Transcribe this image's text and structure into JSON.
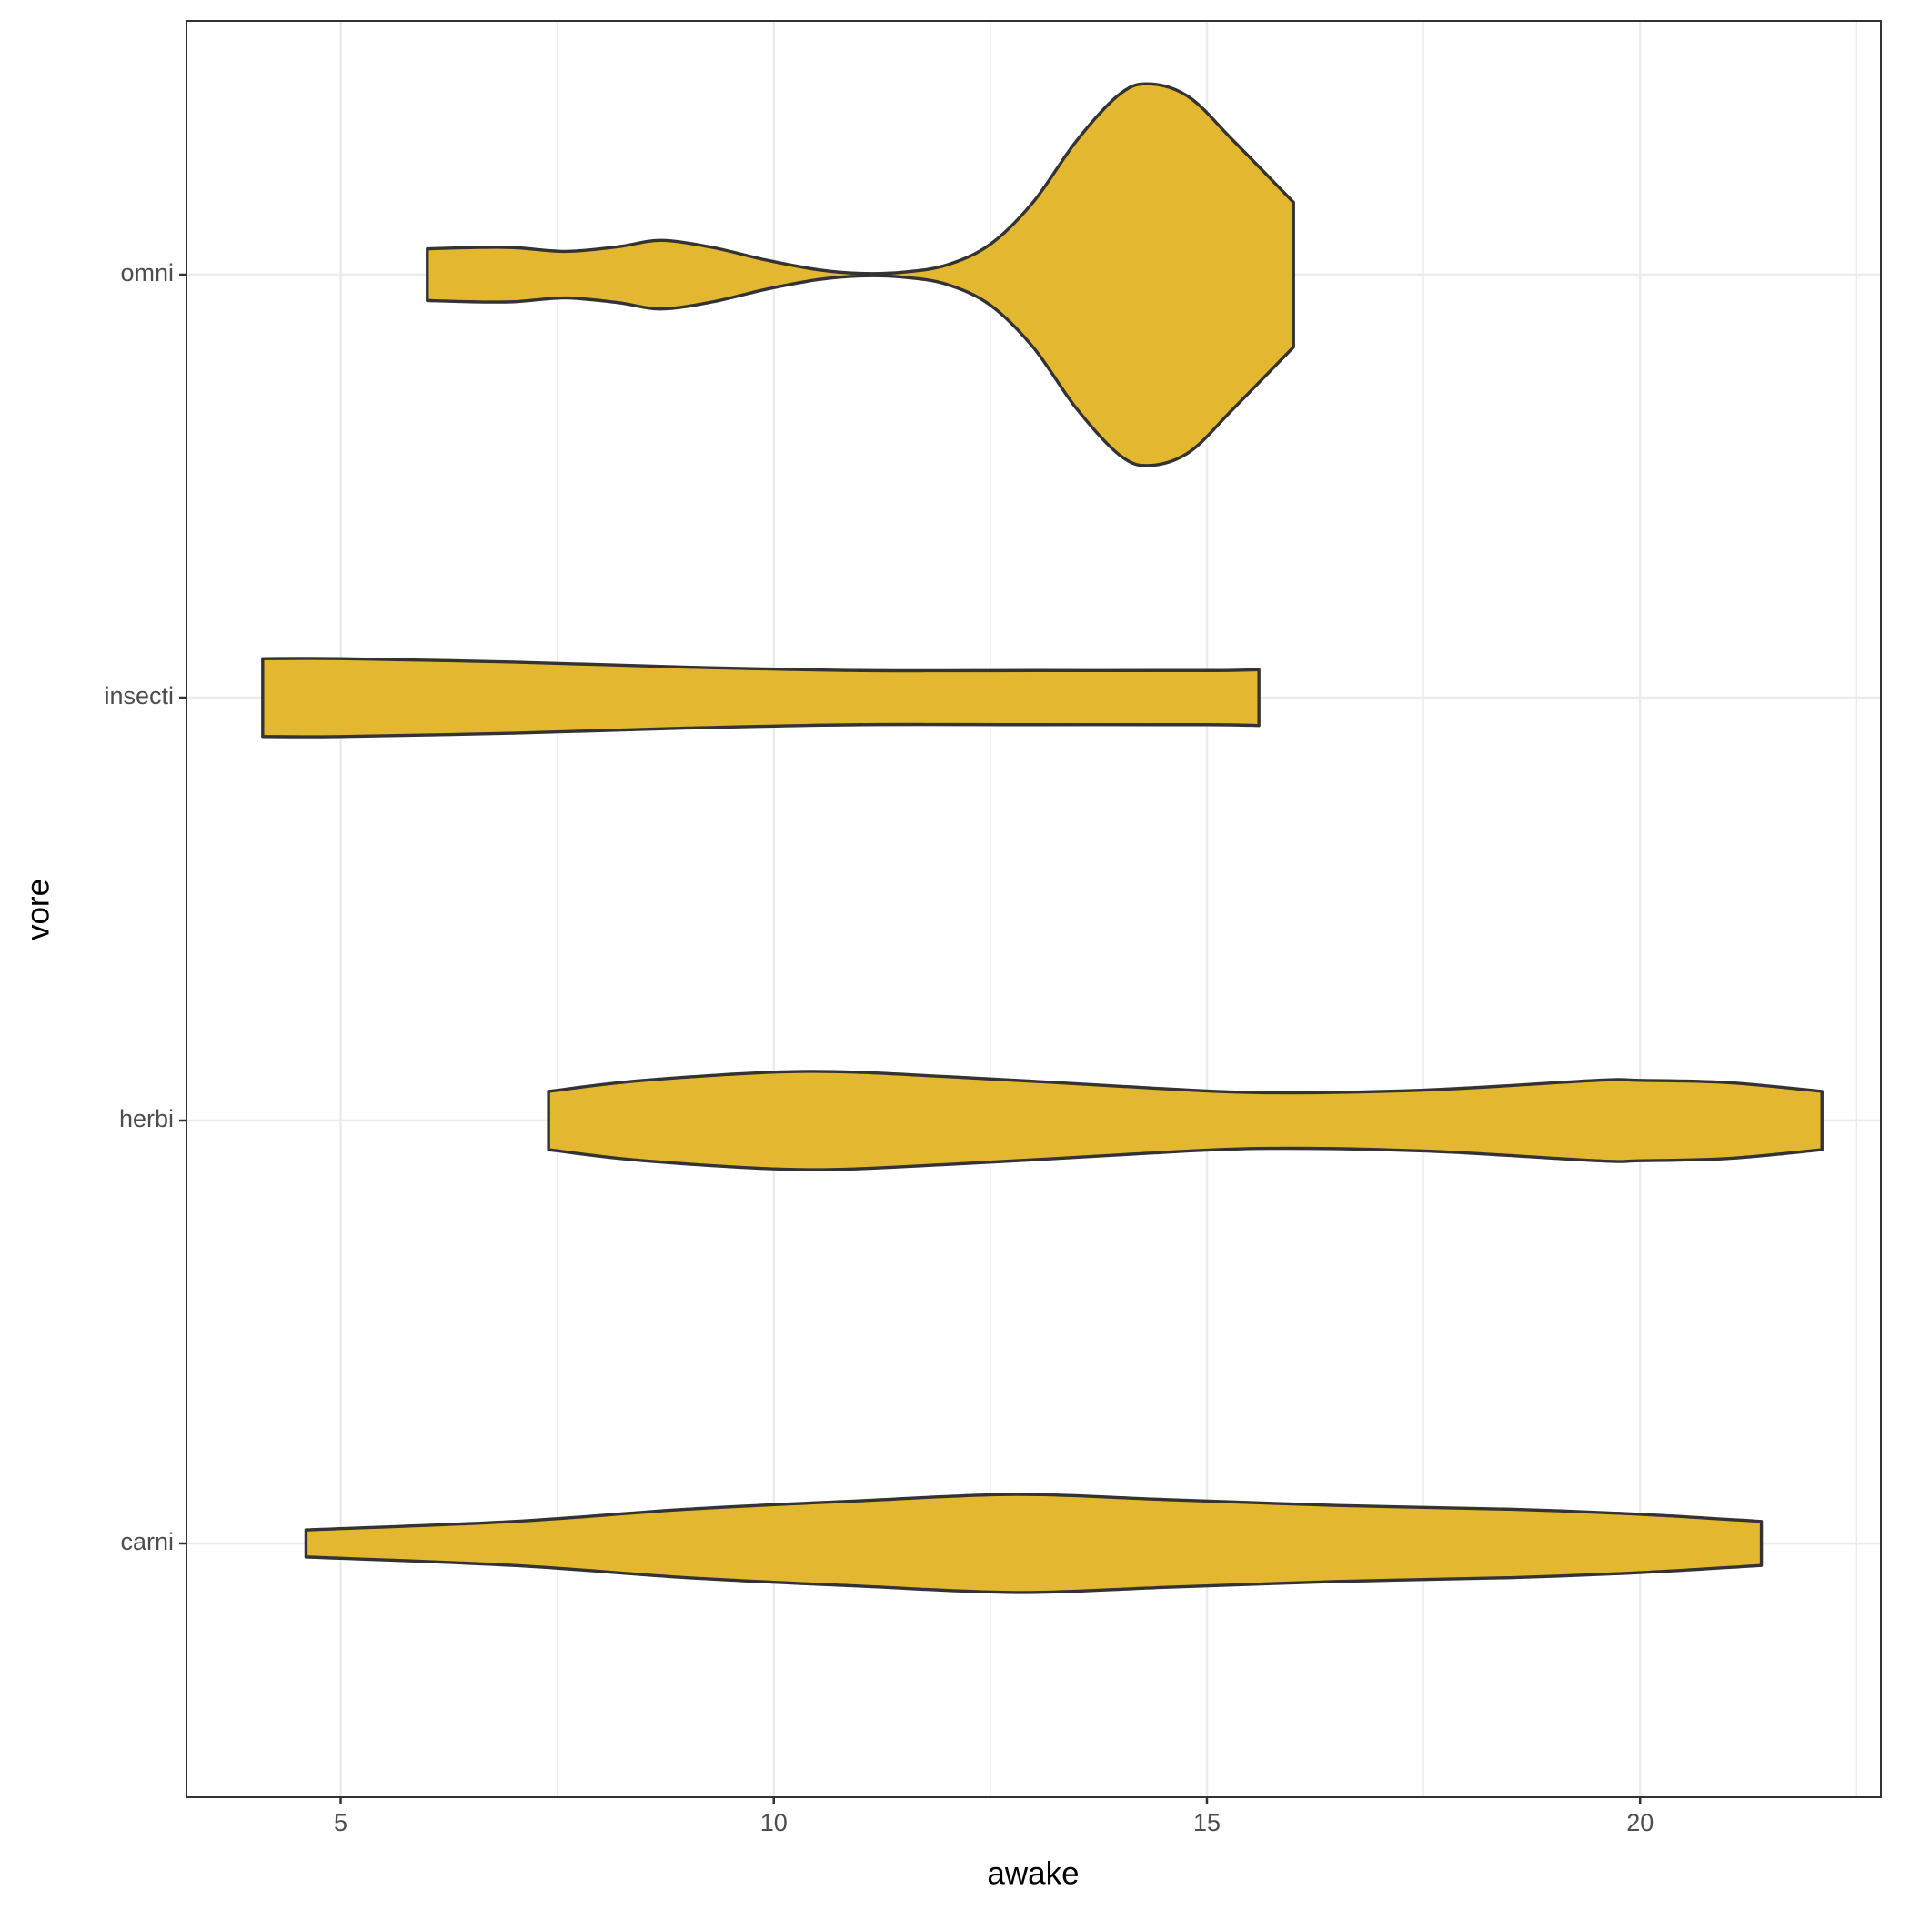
{
  "chart_data": {
    "type": "violin",
    "xlabel": "awake",
    "ylabel": "vore",
    "categories": [
      "carni",
      "herbi",
      "insecti",
      "omni"
    ],
    "color": "#e3b830",
    "edgecolor": "#333333",
    "violins": [
      {
        "x": [
          4.6,
          7,
          9,
          11,
          12.8,
          14.5,
          16.5,
          18.5,
          20,
          21.4
        ],
        "widths": [
          0.032,
          0.052,
          0.081,
          0.101,
          0.116,
          0.104,
          0.09,
          0.081,
          0.069,
          0.052
        ]
      },
      {
        "x": [
          7.4,
          8.5,
          10.3,
          12,
          14,
          15.6,
          17.5,
          19.5,
          20,
          21,
          22.1
        ],
        "widths": [
          0.069,
          0.095,
          0.116,
          0.104,
          0.081,
          0.066,
          0.072,
          0.095,
          0.095,
          0.09,
          0.069
        ]
      },
      {
        "x": [
          4.1,
          5,
          7,
          9,
          11,
          13,
          15,
          15.6
        ],
        "widths": [
          0.092,
          0.092,
          0.084,
          0.072,
          0.064,
          0.064,
          0.064,
          0.066
        ]
      },
      {
        "x": [
          6.0,
          6.5,
          7,
          7.6,
          8.2,
          8.7,
          9.3,
          9.9,
          10.5,
          11,
          11.5,
          12,
          12.5,
          13,
          13.5,
          14,
          14.35,
          14.8,
          15.3,
          16.0
        ],
        "widths": [
          0.061,
          0.064,
          0.064,
          0.055,
          0.066,
          0.081,
          0.064,
          0.035,
          0.012,
          0.003,
          0.006,
          0.023,
          0.072,
          0.173,
          0.318,
          0.428,
          0.451,
          0.419,
          0.318,
          0.171
        ]
      }
    ],
    "xlim": [
      3.22,
      22.78
    ],
    "xticks": [
      5,
      10,
      15,
      20
    ],
    "grid": true
  }
}
